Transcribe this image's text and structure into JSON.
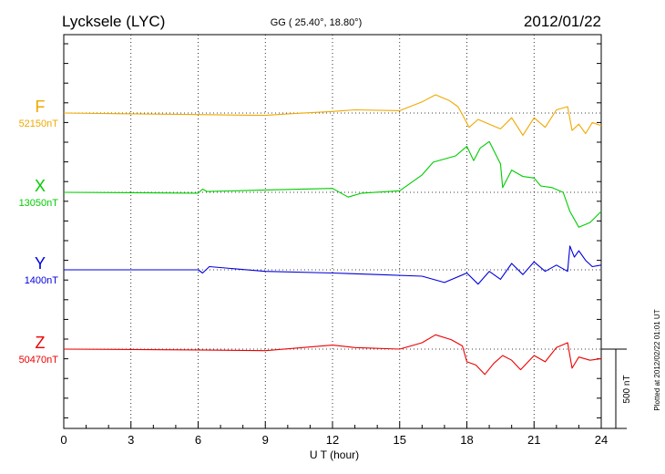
{
  "header": {
    "station": "Lycksele (LYC)",
    "coords": "GG ( 25.40°,  18.80°)",
    "date": "2012/01/22"
  },
  "side_note": "Plotted at 2012/02/22 01:01 UT",
  "scale_label": "500 nT",
  "chart_data": {
    "type": "line",
    "title": "Lycksele (LYC)",
    "xlabel": "U T (hour)",
    "ylabel": "",
    "xlim": [
      0,
      24
    ],
    "xticks": [
      "0",
      "3",
      "6",
      "9",
      "12",
      "15",
      "18",
      "21",
      "24"
    ],
    "grid": true,
    "scale_bar_nT": 500,
    "series": [
      {
        "name": "F",
        "baseline_label": "52150nT",
        "color": "#f0a800",
        "points": [
          [
            0,
            0
          ],
          [
            6,
            -10
          ],
          [
            9,
            -15
          ],
          [
            10,
            -5
          ],
          [
            12,
            10
          ],
          [
            13,
            20
          ],
          [
            15,
            15
          ],
          [
            16,
            70
          ],
          [
            16.6,
            115
          ],
          [
            17.2,
            80
          ],
          [
            17.6,
            40
          ],
          [
            17.8,
            -10
          ],
          [
            18.1,
            -90
          ],
          [
            18.5,
            -40
          ],
          [
            19,
            -70
          ],
          [
            19.5,
            -100
          ],
          [
            20,
            -30
          ],
          [
            20.5,
            -140
          ],
          [
            21,
            -30
          ],
          [
            21.5,
            -90
          ],
          [
            22,
            20
          ],
          [
            22.5,
            40
          ],
          [
            22.7,
            -110
          ],
          [
            23,
            -70
          ],
          [
            23.3,
            -130
          ],
          [
            23.6,
            -60
          ],
          [
            24,
            -80
          ]
        ]
      },
      {
        "name": "X",
        "baseline_label": "13050nT",
        "color": "#00cc00",
        "points": [
          [
            0,
            0
          ],
          [
            6,
            -5
          ],
          [
            6.2,
            20
          ],
          [
            6.4,
            5
          ],
          [
            9,
            15
          ],
          [
            12,
            25
          ],
          [
            12.7,
            -30
          ],
          [
            13.3,
            -5
          ],
          [
            15,
            10
          ],
          [
            16,
            110
          ],
          [
            16.5,
            190
          ],
          [
            17.5,
            230
          ],
          [
            18,
            290
          ],
          [
            18.3,
            200
          ],
          [
            18.6,
            280
          ],
          [
            19,
            320
          ],
          [
            19.5,
            180
          ],
          [
            19.6,
            30
          ],
          [
            20,
            140
          ],
          [
            20.5,
            100
          ],
          [
            21,
            90
          ],
          [
            21.3,
            40
          ],
          [
            21.8,
            30
          ],
          [
            22.3,
            0
          ],
          [
            22.6,
            -120
          ],
          [
            23,
            -220
          ],
          [
            23.5,
            -190
          ],
          [
            24,
            -120
          ]
        ]
      },
      {
        "name": "Y",
        "baseline_label": "1400nT",
        "color": "#0000dd",
        "points": [
          [
            0,
            0
          ],
          [
            6,
            0
          ],
          [
            6.2,
            -20
          ],
          [
            6.5,
            20
          ],
          [
            9,
            -10
          ],
          [
            12,
            -20
          ],
          [
            14,
            -30
          ],
          [
            16,
            -40
          ],
          [
            17,
            -80
          ],
          [
            18,
            -20
          ],
          [
            18.5,
            -90
          ],
          [
            19,
            -10
          ],
          [
            19.5,
            -60
          ],
          [
            20,
            40
          ],
          [
            20.5,
            -30
          ],
          [
            21,
            50
          ],
          [
            21.5,
            -10
          ],
          [
            22,
            30
          ],
          [
            22.5,
            -10
          ],
          [
            22.6,
            150
          ],
          [
            22.8,
            80
          ],
          [
            23,
            120
          ],
          [
            23.3,
            60
          ],
          [
            23.6,
            20
          ],
          [
            24,
            30
          ]
        ]
      },
      {
        "name": "Z",
        "baseline_label": "50470nT",
        "color": "#ee0000",
        "points": [
          [
            0,
            0
          ],
          [
            6,
            -5
          ],
          [
            9,
            -10
          ],
          [
            12,
            25
          ],
          [
            13,
            10
          ],
          [
            15,
            0
          ],
          [
            16,
            40
          ],
          [
            16.6,
            90
          ],
          [
            17.3,
            60
          ],
          [
            17.8,
            20
          ],
          [
            18,
            -80
          ],
          [
            18.4,
            -100
          ],
          [
            18.8,
            -160
          ],
          [
            19.2,
            -90
          ],
          [
            19.6,
            -40
          ],
          [
            20,
            -70
          ],
          [
            20.4,
            -130
          ],
          [
            21,
            -40
          ],
          [
            21.5,
            -80
          ],
          [
            22,
            10
          ],
          [
            22.5,
            40
          ],
          [
            22.7,
            -120
          ],
          [
            23,
            -50
          ],
          [
            23.5,
            -70
          ],
          [
            24,
            -60
          ]
        ]
      }
    ]
  }
}
